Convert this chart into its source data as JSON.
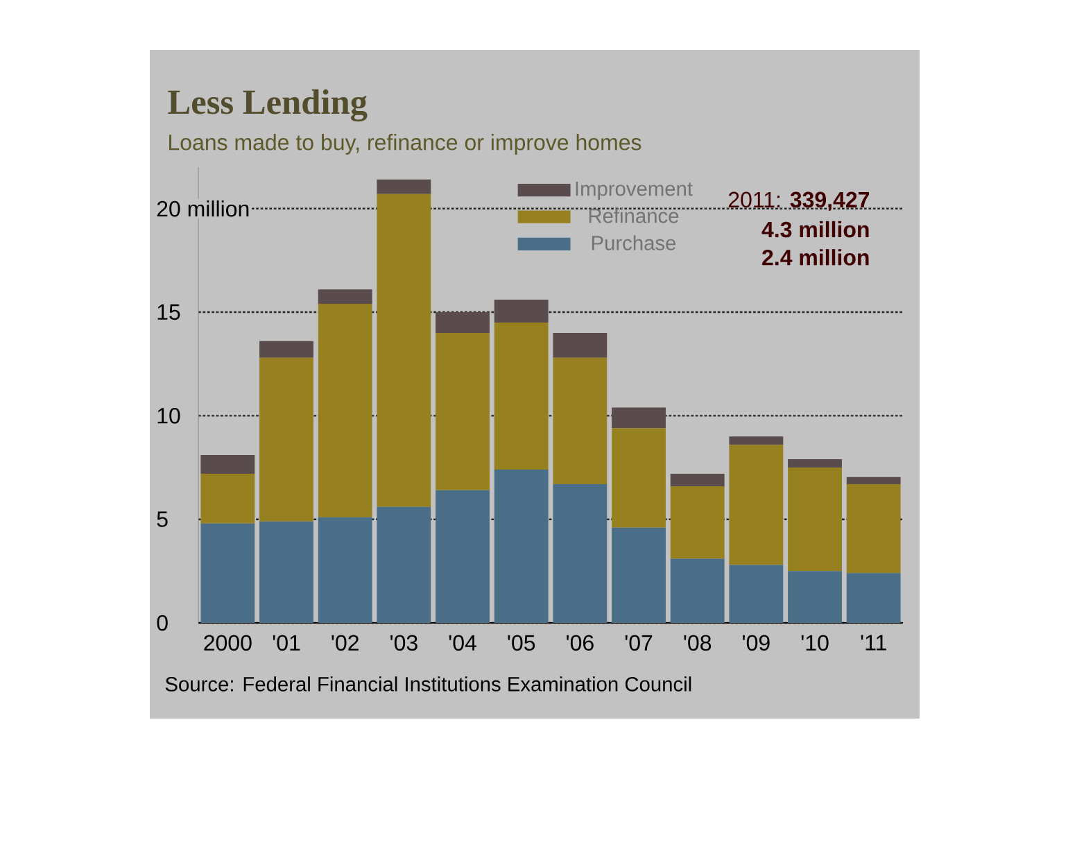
{
  "chart_data": {
    "type": "bar",
    "stacked": true,
    "title": "Less Lending",
    "subtitle": "Loans made to buy, refinance or improve homes",
    "categories": [
      "2000",
      "'01",
      "'02",
      "'03",
      "'04",
      "'05",
      "'06",
      "'07",
      "'08",
      "'09",
      "'10",
      "'11"
    ],
    "series": [
      {
        "name": "Purchase",
        "color": "#4b6e88",
        "values": [
          4.8,
          4.9,
          5.1,
          5.6,
          6.4,
          7.4,
          6.7,
          4.6,
          3.1,
          2.8,
          2.5,
          2.4
        ]
      },
      {
        "name": "Refinance",
        "color": "#96801f",
        "values": [
          2.4,
          7.9,
          10.3,
          15.1,
          7.6,
          7.1,
          6.1,
          4.8,
          3.5,
          5.8,
          5.0,
          4.3
        ]
      },
      {
        "name": "Improvement",
        "color": "#5a4c4c",
        "values": [
          0.9,
          0.8,
          0.7,
          0.7,
          1.0,
          1.1,
          1.2,
          1.0,
          0.6,
          0.4,
          0.4,
          0.34
        ]
      }
    ],
    "ylim": [
      0,
      22
    ],
    "yticks": [
      0,
      5,
      10,
      15,
      {
        "value": 20,
        "label": "20 million"
      }
    ],
    "grid": "y",
    "legend": "top right",
    "annotations": [
      "2011: **339,427**",
      "4.3 million",
      "2.4 million",
      "Source: Federal Financial Institutions Examination Council"
    ]
  }
}
